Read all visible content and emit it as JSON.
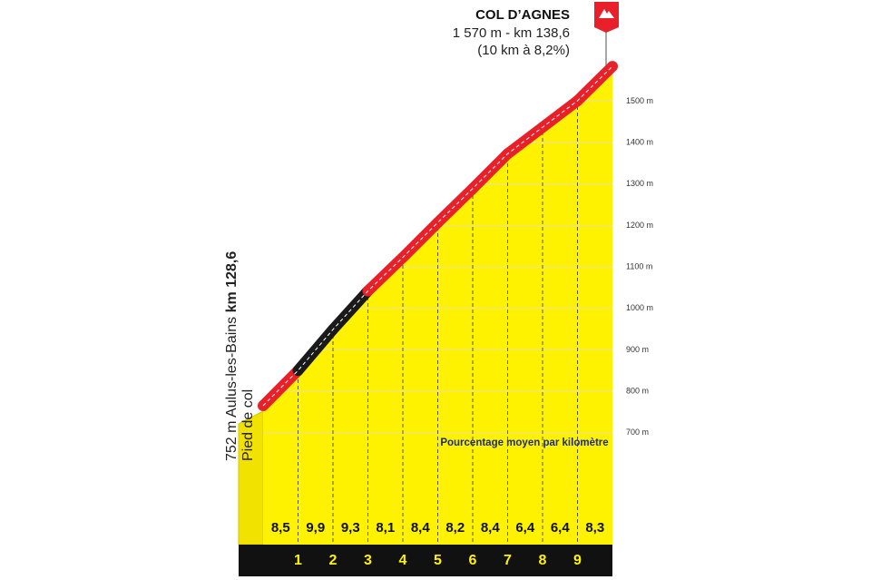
{
  "chart_data": {
    "type": "climb-profile",
    "title": "COL D’AGNES",
    "subtitle": [
      "1 570 m - km 138,6",
      "(10 km à 8,2%)"
    ],
    "start": {
      "elevation": 752,
      "label": "752 m",
      "place": "Aulus-les-Bains",
      "km": "km 128,6",
      "note": "Pied de col"
    },
    "annotation": "Pourcentage moyen par kilomètre",
    "values": [
      8.5,
      9.9,
      9.3,
      8.1,
      8.4,
      8.2,
      8.4,
      6.4,
      6.4,
      8.3
    ],
    "value_labels": [
      "8,5",
      "9,9",
      "9,3",
      "8,1",
      "8,4",
      "8,2",
      "8,4",
      "6,4",
      "6,4",
      "8,3"
    ],
    "segment_colors": [
      "#e8202a",
      "#1a1a1a",
      "#1a1a1a",
      "#e8202a",
      "#e8202a",
      "#e8202a",
      "#e8202a",
      "#e8202a",
      "#e8202a",
      "#e8202a"
    ],
    "fill": "#fff200",
    "xlim": [
      0,
      10
    ],
    "xticks": [
      1,
      2,
      3,
      4,
      5,
      6,
      7,
      8,
      9
    ],
    "ylim": [
      430,
      1580
    ],
    "yticks": [
      {
        "value": 700,
        "label": "700 m"
      },
      {
        "value": 800,
        "label": "800 m"
      },
      {
        "value": 900,
        "label": "900 m"
      },
      {
        "value": 1000,
        "label": "1000 m"
      },
      {
        "value": 1100,
        "label": "1100 m"
      },
      {
        "value": 1200,
        "label": "1200 m"
      },
      {
        "value": 1300,
        "label": "1300 m"
      },
      {
        "value": 1400,
        "label": "1400 m"
      },
      {
        "value": 1500,
        "label": "1500 m"
      }
    ],
    "grid": true
  }
}
